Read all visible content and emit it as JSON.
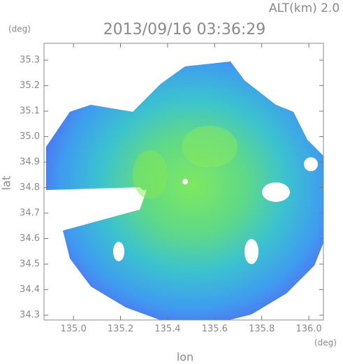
{
  "chart_data": {
    "type": "radar-map",
    "title": "2013/09/16 03:36:29",
    "subtitle": "ALT(km) 2.0",
    "x_label": "lon",
    "y_label": "lat",
    "x_unit": "(deg)",
    "y_unit": "(deg)",
    "xlim": [
      134.875,
      136.062
    ],
    "ylim": [
      34.281,
      35.366
    ],
    "xticks": [
      {
        "value": 135.0,
        "label": "135.0"
      },
      135.2,
      135.4,
      135.6,
      135.8,
      {
        "value": 136.0,
        "label": "136.0"
      }
    ],
    "yticks": [
      34.3,
      34.4,
      34.5,
      34.6,
      34.7,
      34.8,
      34.9,
      {
        "value": 35.0,
        "label": "35.0"
      },
      35.1,
      35.2,
      35.3
    ]
  }
}
